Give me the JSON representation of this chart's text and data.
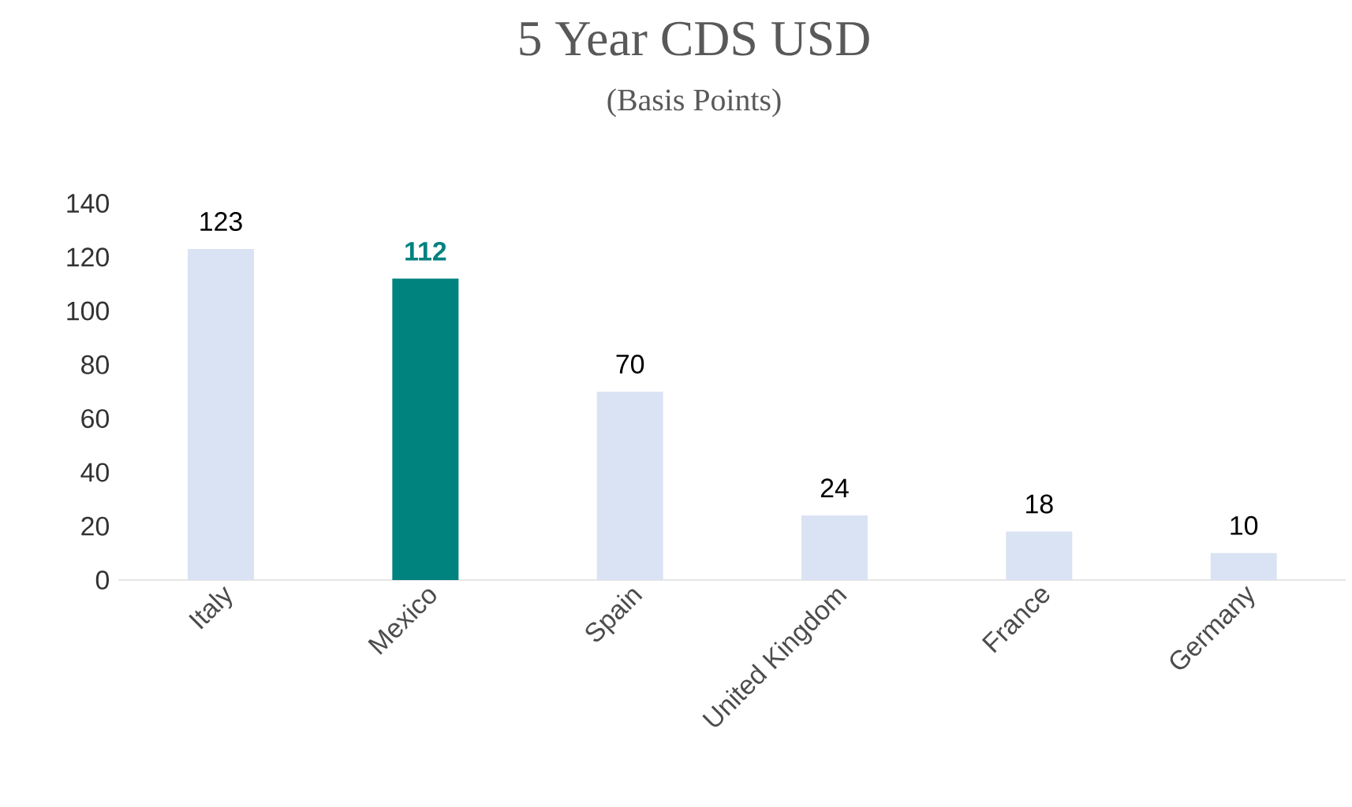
{
  "chart_data": {
    "type": "bar",
    "title": "5 Year CDS USD",
    "subtitle": "(Basis Points)",
    "categories": [
      "Italy",
      "Mexico",
      "Spain",
      "United Kingdom",
      "France",
      "Germany"
    ],
    "values": [
      123,
      112,
      70,
      24,
      18,
      10
    ],
    "colors": [
      "#dae3f3",
      "#00827f",
      "#dae3f3",
      "#dae3f3",
      "#dae3f3",
      "#dae3f3"
    ],
    "ylim": [
      0,
      140
    ],
    "yticks": [
      0,
      20,
      40,
      60,
      80,
      100,
      120,
      140
    ],
    "data_labels": true
  }
}
